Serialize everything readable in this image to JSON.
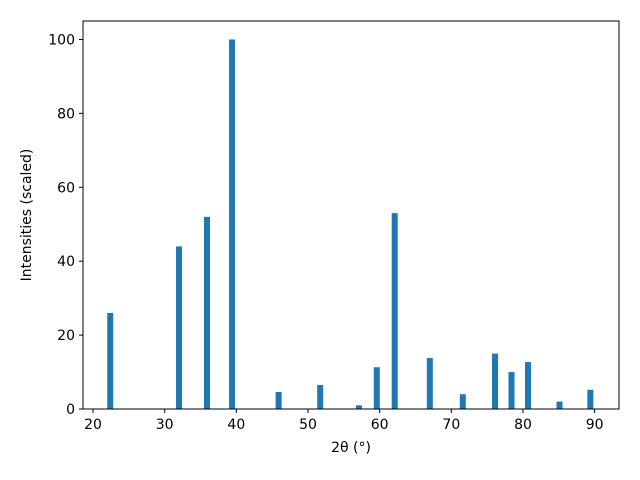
{
  "chart_data": {
    "type": "bar",
    "x_label": "2θ (°)",
    "y_label": "Intensities (scaled)",
    "x": [
      22.4,
      32.0,
      35.9,
      39.4,
      45.9,
      51.7,
      57.1,
      59.6,
      62.1,
      67.0,
      71.6,
      76.1,
      78.4,
      80.7,
      85.1,
      89.4
    ],
    "values": [
      26,
      44,
      52,
      100,
      4.6,
      6.5,
      1,
      11.3,
      53,
      13.8,
      4,
      15,
      10,
      12.7,
      2,
      5.2
    ],
    "color": "#1f77b4",
    "xlim": [
      18.6,
      93.4
    ],
    "xticks": [
      20,
      30,
      40,
      50,
      60,
      70,
      80,
      90
    ],
    "ylim": [
      0,
      105
    ],
    "yticks": [
      0,
      20,
      40,
      60,
      80,
      100
    ]
  }
}
